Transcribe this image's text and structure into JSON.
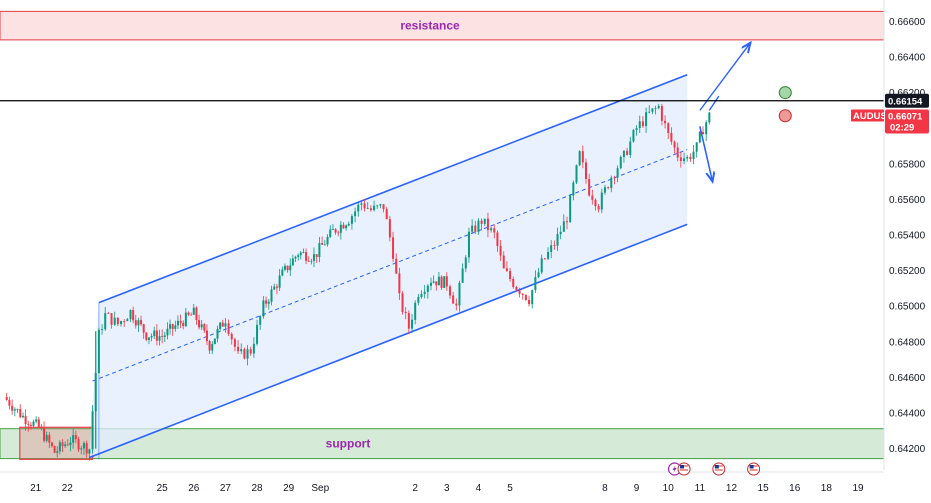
{
  "chart_data": {
    "type": "candlestick",
    "symbol": "AUDUSD",
    "x_ticks": [
      "21",
      "22",
      "25",
      "26",
      "27",
      "28",
      "29",
      "Sep",
      "2",
      "3",
      "4",
      "5",
      "8",
      "9",
      "10",
      "11",
      "12",
      "15",
      "16",
      "18",
      "19"
    ],
    "x_tick_pos": [
      21,
      22,
      25,
      26,
      27,
      28,
      29,
      30,
      33,
      34,
      35,
      36,
      39,
      40,
      41,
      42,
      43,
      44,
      45,
      46,
      47
    ],
    "y_ticks": [
      "0.66600",
      "0.66400",
      "0.66200",
      "0.65800",
      "0.65600",
      "0.65400",
      "0.65200",
      "0.65000",
      "0.64800",
      "0.64600",
      "0.64400",
      "0.64200"
    ],
    "ylim": [
      0.6408,
      0.6672
    ],
    "resistance_zone": {
      "label": "resistance",
      "low": 0.66496,
      "high": 0.66656
    },
    "support_zone": {
      "label": "support",
      "low": 0.64144,
      "high": 0.64312
    },
    "horizontal_line": {
      "value": 0.66154,
      "label": "0.66154"
    },
    "current_price": {
      "symbol": "AUDUSD",
      "value": "0.66071",
      "countdown": "02:29",
      "level": 0.66071
    },
    "price_path": [
      [
        20.0,
        0.6449
      ],
      [
        20.6,
        0.6438
      ],
      [
        21.1,
        0.6432
      ],
      [
        21.6,
        0.6418
      ],
      [
        22.1,
        0.6425
      ],
      [
        22.7,
        0.642
      ],
      [
        23.0,
        0.6484
      ],
      [
        23.2,
        0.6495
      ],
      [
        23.6,
        0.649
      ],
      [
        24.0,
        0.6497
      ],
      [
        24.5,
        0.6484
      ],
      [
        25.0,
        0.6483
      ],
      [
        25.5,
        0.649
      ],
      [
        26.0,
        0.6496
      ],
      [
        26.5,
        0.6478
      ],
      [
        27.0,
        0.6493
      ],
      [
        27.4,
        0.6472
      ],
      [
        27.8,
        0.6475
      ],
      [
        28.2,
        0.65
      ],
      [
        28.8,
        0.6518
      ],
      [
        29.3,
        0.653
      ],
      [
        29.8,
        0.6528
      ],
      [
        30.4,
        0.6542
      ],
      [
        30.9,
        0.6549
      ],
      [
        31.3,
        0.6558
      ],
      [
        31.6,
        0.6554
      ],
      [
        32.0,
        0.6556
      ],
      [
        32.3,
        0.653
      ],
      [
        32.5,
        0.6504
      ],
      [
        32.8,
        0.6488
      ],
      [
        33.1,
        0.6508
      ],
      [
        33.5,
        0.6515
      ],
      [
        34.0,
        0.6513
      ],
      [
        34.3,
        0.65
      ],
      [
        34.7,
        0.654
      ],
      [
        35.1,
        0.6548
      ],
      [
        35.5,
        0.654
      ],
      [
        35.8,
        0.652
      ],
      [
        36.2,
        0.6511
      ],
      [
        36.6,
        0.6504
      ],
      [
        37.0,
        0.6524
      ],
      [
        37.4,
        0.6535
      ],
      [
        37.8,
        0.655
      ],
      [
        38.2,
        0.6585
      ],
      [
        38.5,
        0.6565
      ],
      [
        38.8,
        0.6557
      ],
      [
        39.2,
        0.6573
      ],
      [
        39.6,
        0.6584
      ],
      [
        40.0,
        0.66
      ],
      [
        40.4,
        0.6608
      ],
      [
        40.7,
        0.6612
      ],
      [
        41.0,
        0.6596
      ],
      [
        41.3,
        0.6585
      ],
      [
        41.6,
        0.6583
      ],
      [
        41.9,
        0.6589
      ],
      [
        42.1,
        0.66
      ],
      [
        42.3,
        0.6607
      ]
    ],
    "channel": {
      "upper": [
        [
          23.0,
          0.6502
        ],
        [
          41.6,
          0.663
        ]
      ],
      "lower": [
        [
          22.7,
          0.6415
        ],
        [
          41.6,
          0.6546
        ]
      ],
      "mid": [
        [
          22.8,
          0.6458
        ],
        [
          41.6,
          0.6588
        ]
      ]
    },
    "projections": [
      {
        "from": [
          42.0,
          0.661
        ],
        "to": [
          43.6,
          0.6648
        ]
      },
      {
        "from": [
          42.0,
          0.6601
        ],
        "to": [
          42.4,
          0.657
        ]
      }
    ],
    "markers": [
      {
        "kind": "green-circle",
        "x": 44.7,
        "y": 0.662
      },
      {
        "kind": "red-circle",
        "x": 44.7,
        "y": 0.6607
      }
    ],
    "event_icons": [
      {
        "kind": "lightning-flag",
        "x": 41.2
      },
      {
        "kind": "us-flag",
        "x": 41.5
      },
      {
        "kind": "us-flag",
        "x": 42.6
      },
      {
        "kind": "us-flag",
        "x": 43.7
      }
    ],
    "colors": {
      "resistance_fill": "#fde2e4",
      "resistance_border": "#e53e49",
      "support_fill": "#d6ead8",
      "support_border": "#43a047",
      "channel_line": "#2962ff",
      "channel_fill": "#e3ecfd",
      "up_candle": "#089981",
      "down_candle": "#f23645",
      "hline": "#000000",
      "price_tag": "#f23645"
    }
  }
}
